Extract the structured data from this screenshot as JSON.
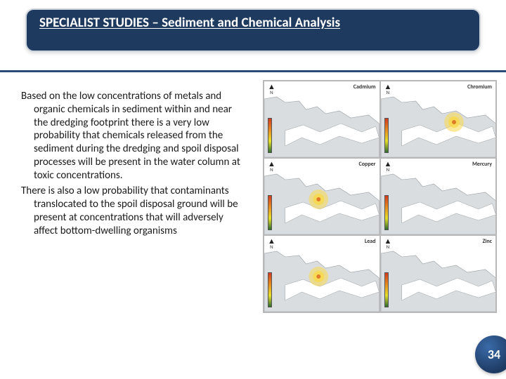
{
  "header": {
    "title": "SPECIALIST STUDIES – Sediment and Chemical Analysis"
  },
  "body": {
    "para1": "Based on the low concentrations of metals and organic chemicals in sediment within and near the dredging footprint there is a very low probability that chemicals released from the sediment during the dredging and spoil disposal processes will be present in the water column at toxic concentrations.",
    "para2": "There is also a low probability that contaminants translocated to the spoil disposal ground will be present at concentrations that will adversely affect bottom-dwelling organisms"
  },
  "maps": {
    "panels": [
      {
        "label": "Cadmium",
        "hotspot": false
      },
      {
        "label": "Chromium",
        "hotspot": true,
        "hx": 105,
        "hy": 58
      },
      {
        "label": "Copper",
        "hotspot": true,
        "hx": 78,
        "hy": 58
      },
      {
        "label": "Mercury",
        "hotspot": false
      },
      {
        "label": "Lead",
        "hotspot": true,
        "hx": 78,
        "hy": 58
      },
      {
        "label": "Zinc",
        "hotspot": false
      }
    ],
    "colors": {
      "land": "#d9dde0",
      "water": "#ffffff",
      "outline": "#9aa0a6",
      "hotspot_fill": "#f7d84a",
      "hotspot_core": "#e07a2a"
    }
  },
  "badge": {
    "page": "34"
  }
}
